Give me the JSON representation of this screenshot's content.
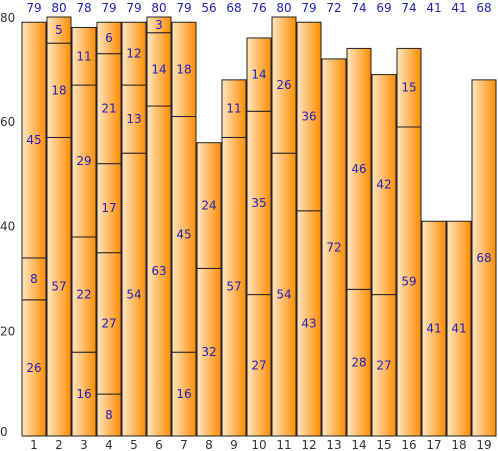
{
  "chart_data": {
    "type": "bar",
    "stacked": true,
    "categories": [
      "1",
      "2",
      "3",
      "4",
      "5",
      "6",
      "7",
      "8",
      "9",
      "10",
      "11",
      "12",
      "13",
      "14",
      "15",
      "16",
      "17",
      "18",
      "19"
    ],
    "segments": [
      [
        26,
        8,
        45
      ],
      [
        57,
        18,
        5
      ],
      [
        16,
        22,
        29,
        11
      ],
      [
        8,
        27,
        17,
        21,
        6
      ],
      [
        54,
        13,
        12
      ],
      [
        63,
        14,
        3
      ],
      [
        16,
        45,
        18
      ],
      [
        32,
        24
      ],
      [
        57,
        11
      ],
      [
        27,
        35,
        14
      ],
      [
        54,
        26
      ],
      [
        43,
        36
      ],
      [
        72
      ],
      [
        28,
        46
      ],
      [
        27,
        42
      ],
      [
        59,
        15
      ],
      [
        41
      ],
      [
        41
      ],
      [
        68
      ]
    ],
    "totals": [
      79,
      80,
      78,
      79,
      79,
      80,
      79,
      56,
      68,
      76,
      80,
      79,
      72,
      74,
      69,
      74,
      41,
      41,
      68
    ],
    "y_ticks": [
      0,
      20,
      40,
      60,
      80
    ],
    "ylim": [
      0,
      80
    ],
    "title": "",
    "xlabel": "",
    "ylabel": "",
    "legend": "none",
    "grid": false,
    "colors": {
      "bar_light": "#ffe6c2",
      "bar_dark": "#ff8c00",
      "bar_stroke": "#222222",
      "label": "#2222bb"
    }
  }
}
